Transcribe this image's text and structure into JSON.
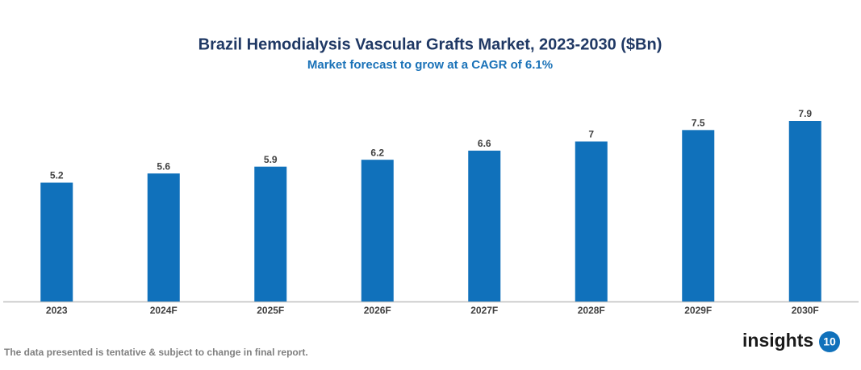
{
  "chart_data": {
    "type": "bar",
    "title": "Brazil Hemodialysis Vascular Grafts Market, 2023-2030 ($Bn)",
    "subtitle": "Market forecast to grow at a CAGR of 6.1%",
    "categories": [
      "2023",
      "2024F",
      "2025F",
      "2026F",
      "2027F",
      "2028F",
      "2029F",
      "2030F"
    ],
    "values": [
      5.2,
      5.6,
      5.9,
      6.2,
      6.6,
      7,
      7.5,
      7.9
    ],
    "color": "#1071bb"
  },
  "footer": {
    "note": "The data presented is tentative & subject to change in final report.",
    "logo": {
      "text": "insights",
      "badge": "10"
    }
  }
}
